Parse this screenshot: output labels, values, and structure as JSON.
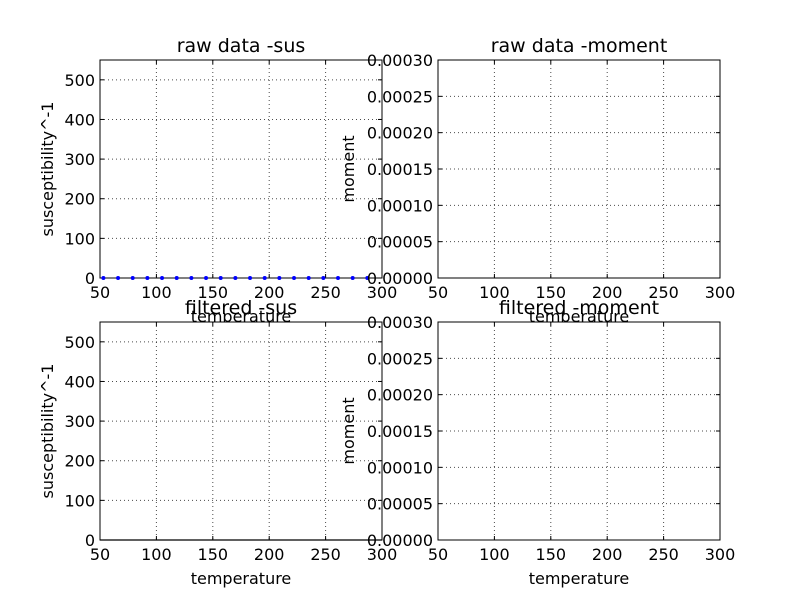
{
  "chart_data": [
    {
      "type": "scatter",
      "title": "raw data -sus",
      "xlabel": "temperature",
      "ylabel": "susceptibility^-1",
      "xlim": [
        50,
        300
      ],
      "ylim": [
        0,
        550
      ],
      "x_ticks": [
        "50",
        "100",
        "150",
        "200",
        "250",
        "300"
      ],
      "y_ticks": [
        "0",
        "100",
        "200",
        "300",
        "400",
        "500"
      ],
      "grid": true,
      "series": [
        {
          "x": [
            53,
            66,
            79,
            92,
            105,
            118,
            131,
            144,
            157,
            170,
            183,
            196,
            209,
            222,
            235,
            248,
            261,
            274,
            287
          ],
          "y": [
            0,
            0,
            0,
            0,
            0,
            0,
            0,
            0,
            0,
            0,
            0,
            0,
            0,
            0,
            0,
            0,
            0,
            0,
            0
          ],
          "color": "#0000ff",
          "marker": "dot"
        }
      ]
    },
    {
      "type": "line",
      "title": "raw data -moment",
      "xlabel": "temperature",
      "ylabel": "moment",
      "xlim": [
        50,
        300
      ],
      "ylim": [
        0,
        0.0003
      ],
      "x_ticks": [
        "50",
        "100",
        "150",
        "200",
        "250",
        "300"
      ],
      "y_ticks": [
        "0.00000",
        "0.00005",
        "0.00010",
        "0.00015",
        "0.00020",
        "0.00025",
        "0.00030"
      ],
      "grid": true,
      "series": []
    },
    {
      "type": "line",
      "title": "filtered -sus",
      "xlabel": "temperature",
      "ylabel": "susceptibility^-1",
      "xlim": [
        50,
        300
      ],
      "ylim": [
        0,
        550
      ],
      "x_ticks": [
        "50",
        "100",
        "150",
        "200",
        "250",
        "300"
      ],
      "y_ticks": [
        "0",
        "100",
        "200",
        "300",
        "400",
        "500"
      ],
      "grid": true,
      "series": [
        {
          "x": [
            50,
            300
          ],
          "y": [
            0,
            0
          ],
          "color": "#000000",
          "marker": "none"
        }
      ]
    },
    {
      "type": "line",
      "title": "filtered -moment",
      "xlabel": "temperature",
      "ylabel": "moment",
      "xlim": [
        50,
        300
      ],
      "ylim": [
        0,
        0.0003
      ],
      "x_ticks": [
        "50",
        "100",
        "150",
        "200",
        "250",
        "300"
      ],
      "y_ticks": [
        "0.00000",
        "0.00005",
        "0.00010",
        "0.00015",
        "0.00020",
        "0.00025",
        "0.00030"
      ],
      "grid": true,
      "series": []
    }
  ]
}
